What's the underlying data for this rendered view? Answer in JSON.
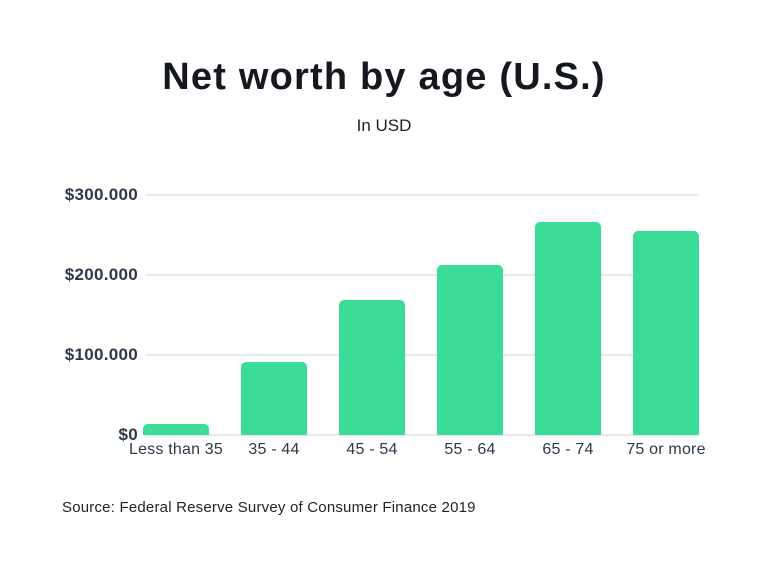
{
  "header": {
    "title": "Net worth by age (U.S.)",
    "subtitle": "In USD"
  },
  "footer": {
    "source": "Source: Federal Reserve Survey of Consumer Finance 2019"
  },
  "colors": {
    "bar": "#3adc98",
    "grid": "#e8e9ec",
    "title_text": "#15181f",
    "axis_text": "#2c3947"
  },
  "chart_data": {
    "type": "bar",
    "title": "Net worth by age (U.S.)",
    "subtitle": "In USD",
    "unit": "USD",
    "categories": [
      "Less than 35",
      "35 - 44",
      "45 - 54",
      "55 - 64",
      "65 - 74",
      "75 or more"
    ],
    "values": [
      13900,
      91300,
      168600,
      212500,
      266400,
      254800
    ],
    "xlabel": "",
    "ylabel": "",
    "ylim": [
      0,
      300000
    ],
    "ytick_values": [
      0,
      100000,
      200000,
      300000
    ],
    "ytick_labels": [
      "$0",
      "$100.000",
      "$200.000",
      "$300.000"
    ],
    "grid": "horizontal",
    "legend": false,
    "bar_color": "#3adc98",
    "source": "Source: Federal Reserve Survey of Consumer Finance 2019"
  }
}
